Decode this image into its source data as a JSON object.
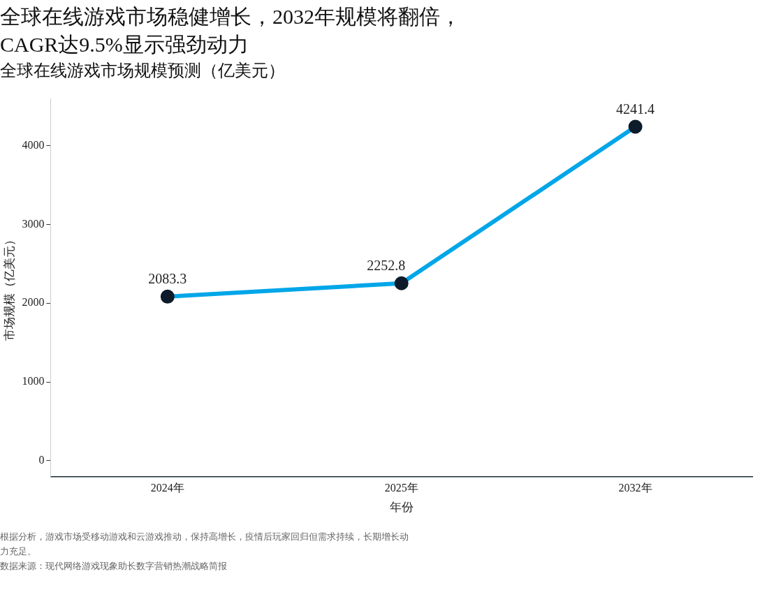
{
  "chart_data": {
    "type": "line",
    "title": "全球在线游戏市场稳健增长，2032年规模将翻倍，CAGR达9.5%显示强劲动力",
    "subtitle": "全球在线游戏市场规模预测（亿美元）",
    "xlabel": "年份",
    "ylabel": "市场规模（亿美元）",
    "categories": [
      "2024年",
      "2025年",
      "2032年"
    ],
    "series": [
      {
        "color": "#00a6e8",
        "values": [
          2083.3,
          2252.8,
          4241.4
        ]
      }
    ],
    "ylim": [
      -200,
      4600
    ],
    "yticks": [
      0,
      1000,
      2000,
      3000,
      4000
    ],
    "grid": false,
    "marker": "circle",
    "line_style": "solid",
    "data_labels": true,
    "legend": false,
    "annotations": [
      "根据分析，游戏市场受移动游戏和云游戏推动，保持高增长，疫情后玩家回归但需求持续，长期增长动力充足。",
      "数据来源：现代网络游戏现象助长数字营销热潮战略简报"
    ]
  }
}
